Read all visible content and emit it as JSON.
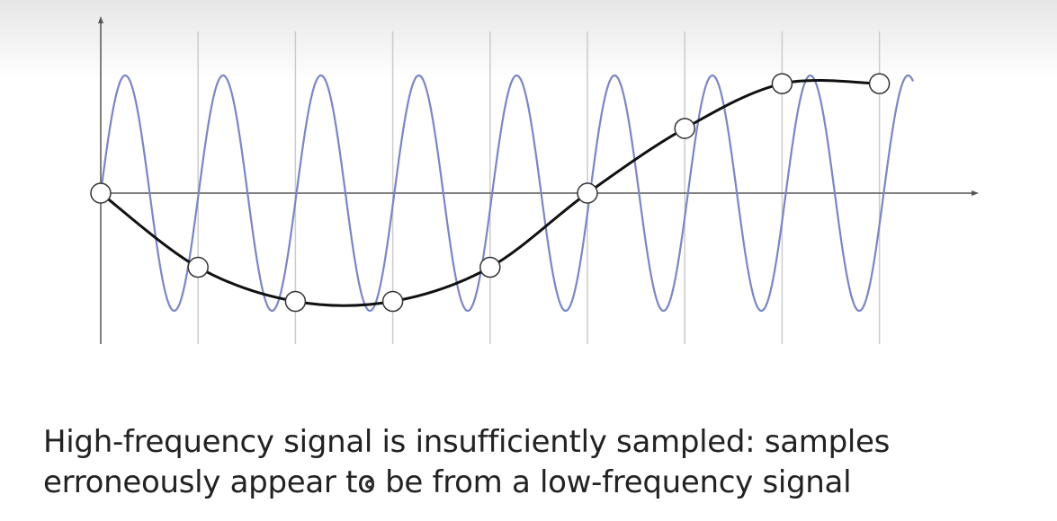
{
  "diagram": {
    "description_caption": [
      "High-frequency signal is insufficiently sampled: samples",
      "erroneously appear to be from a low-frequency signal"
    ],
    "high_frequency_signal": {
      "cycles": 8.3,
      "color": "#7b86c4"
    },
    "low_frequency_signal": {
      "color": "#111111"
    },
    "sample_count": 9,
    "sample_values": [
      0,
      -0.63,
      -0.92,
      -0.92,
      -0.63,
      0,
      0.55,
      0.93,
      0.93
    ]
  },
  "colors": {
    "gridline": "#cccccc",
    "axis": "#555555",
    "sample_fill": "#ffffff",
    "sample_stroke": "#333333"
  }
}
